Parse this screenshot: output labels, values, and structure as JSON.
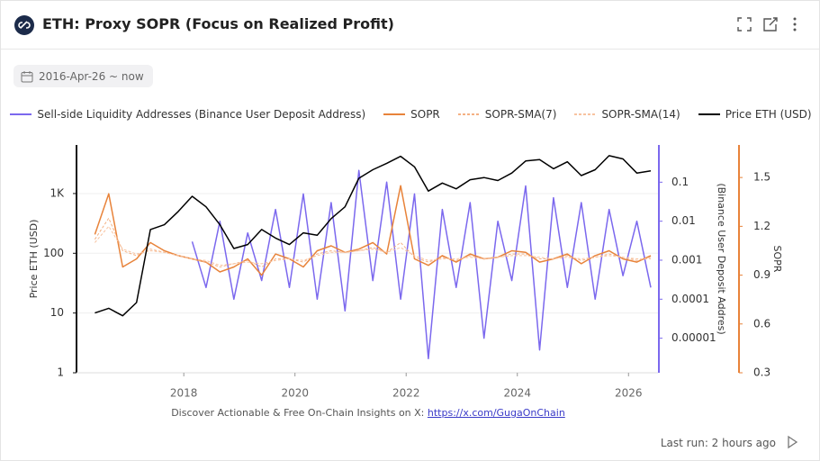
{
  "header": {
    "title": "ETH: Proxy SOPR (Focus on Realized Profit)"
  },
  "filter": {
    "date_range": "2016-Apr-26 ~ now"
  },
  "footer": {
    "note": "Discover Actionable & Free On-Chain Insights on X:",
    "link": "https://x.com/GugaOnChain"
  },
  "status": {
    "last_run": "Last run: 2 hours ago"
  },
  "chart_data": {
    "type": "line",
    "y_label": "Price ETH (USD)",
    "y2_label": "(Binance User Deposit Addres)",
    "y3_label": "SOPR",
    "x": [
      2016.4,
      2016.65,
      2016.9,
      2017.15,
      2017.4,
      2017.65,
      2017.9,
      2018.15,
      2018.4,
      2018.65,
      2018.9,
      2019.15,
      2019.4,
      2019.65,
      2019.9,
      2020.15,
      2020.4,
      2020.65,
      2020.9,
      2021.15,
      2021.4,
      2021.65,
      2021.9,
      2022.15,
      2022.4,
      2022.65,
      2022.9,
      2023.15,
      2023.4,
      2023.65,
      2023.9,
      2024.15,
      2024.4,
      2024.65,
      2024.9,
      2025.15,
      2025.4,
      2025.65,
      2025.9,
      2026.15,
      2026.4
    ],
    "xlim": [
      2016.07,
      2026.53
    ],
    "xticks": [
      2018,
      2020,
      2022,
      2024,
      2026
    ],
    "ylim": [
      1,
      6500
    ],
    "ylog": true,
    "yticks": [
      1,
      10,
      100,
      {
        "value": 1000,
        "label": "1K"
      }
    ],
    "y2lim": [
      1.3e-06,
      0.9
    ],
    "y2log": true,
    "y2ticks": [
      0.1,
      0.01,
      0.001,
      0.0001,
      {
        "value": 1e-05,
        "label": "0.00001"
      }
    ],
    "y3lim": [
      0.3,
      1.7
    ],
    "y3ticks": [
      0.3,
      0.6,
      0.9,
      1.2,
      1.5
    ],
    "grid": true,
    "series": [
      {
        "name": "Sell-side Liquidity Addresses (Binance User Deposit Address)",
        "color": "#7b68ee",
        "axis": "y2",
        "values": [
          null,
          null,
          null,
          null,
          null,
          null,
          null,
          0.003,
          0.0002,
          0.01,
          0.0001,
          0.005,
          0.0003,
          0.02,
          0.0002,
          0.05,
          0.0001,
          0.03,
          5e-05,
          0.2,
          0.0003,
          0.1,
          0.0001,
          0.05,
          3e-06,
          0.02,
          0.0002,
          0.03,
          1e-05,
          0.01,
          0.0003,
          0.08,
          5e-06,
          0.04,
          0.0002,
          0.03,
          0.0001,
          0.02,
          0.0004,
          0.01,
          0.0002
        ]
      },
      {
        "name": "SOPR",
        "color": "#e8833a",
        "axis": "y3",
        "values": [
          1.15,
          1.4,
          0.95,
          1.0,
          1.1,
          1.05,
          1.02,
          1.0,
          0.98,
          0.92,
          0.95,
          1.0,
          0.9,
          1.03,
          1.0,
          0.95,
          1.05,
          1.08,
          1.04,
          1.06,
          1.1,
          1.03,
          1.45,
          1.0,
          0.96,
          1.02,
          0.98,
          1.03,
          1.0,
          1.01,
          1.05,
          1.04,
          0.98,
          1.0,
          1.03,
          0.97,
          1.02,
          1.05,
          1.0,
          0.98,
          1.02
        ]
      },
      {
        "name": "SOPR-SMA(7)",
        "color": "#f4b183",
        "axis": "y3",
        "dashed": true,
        "values": [
          1.12,
          1.25,
          1.05,
          1.02,
          1.06,
          1.04,
          1.02,
          1.0,
          0.98,
          0.95,
          0.97,
          0.99,
          0.95,
          1.0,
          1.0,
          0.98,
          1.03,
          1.05,
          1.04,
          1.05,
          1.07,
          1.04,
          1.1,
          1.01,
          0.98,
          1.01,
          0.99,
          1.02,
          1.0,
          1.01,
          1.03,
          1.03,
          1.0,
          1.0,
          1.02,
          0.99,
          1.01,
          1.03,
          1.01,
          0.99,
          1.01
        ]
      },
      {
        "name": "SOPR-SMA(14)",
        "color": "#f8c3a0",
        "axis": "y3",
        "dashed": true,
        "values": [
          1.1,
          1.2,
          1.06,
          1.03,
          1.05,
          1.04,
          1.02,
          1.0,
          0.99,
          0.96,
          0.97,
          0.98,
          0.97,
          0.99,
          1.0,
          0.99,
          1.02,
          1.04,
          1.04,
          1.05,
          1.06,
          1.04,
          1.07,
          1.02,
          0.99,
          1.0,
          1.0,
          1.01,
          1.0,
          1.01,
          1.02,
          1.02,
          1.01,
          1.0,
          1.01,
          1.0,
          1.01,
          1.02,
          1.01,
          1.0,
          1.0
        ]
      },
      {
        "name": "Price ETH (USD)",
        "color": "#000000",
        "axis": "y",
        "values": [
          10,
          12,
          9,
          15,
          250,
          300,
          500,
          900,
          600,
          300,
          120,
          140,
          250,
          180,
          140,
          220,
          200,
          380,
          600,
          1800,
          2500,
          3200,
          4200,
          2800,
          1100,
          1500,
          1200,
          1700,
          1850,
          1650,
          2200,
          3500,
          3700,
          2600,
          3400,
          2000,
          2500,
          4300,
          3800,
          2200,
          2400
        ]
      }
    ]
  }
}
